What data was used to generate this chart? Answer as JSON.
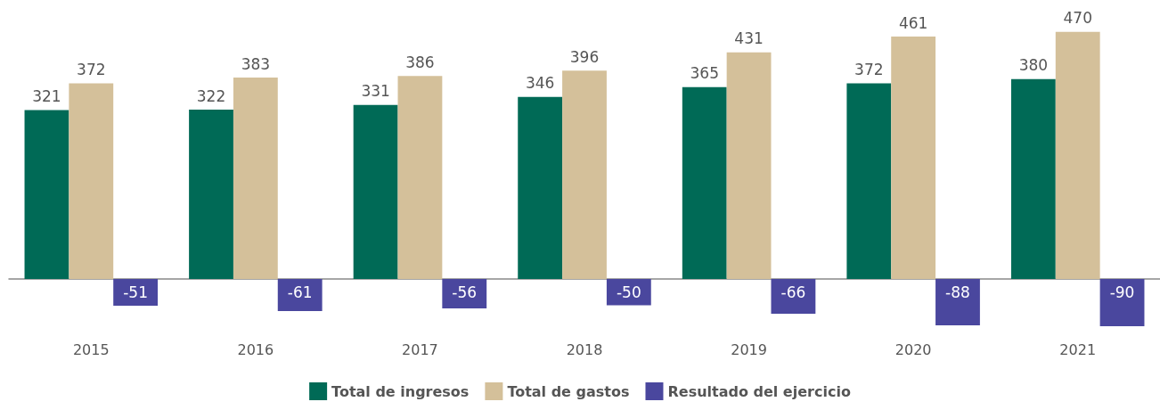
{
  "chart_data": {
    "type": "bar",
    "categories": [
      "2015",
      "2016",
      "2017",
      "2018",
      "2019",
      "2020",
      "2021"
    ],
    "series": [
      {
        "name": "Total de ingresos",
        "color": "#006a56",
        "values": [
          321,
          322,
          331,
          346,
          365,
          372,
          380
        ]
      },
      {
        "name": "Total de gastos",
        "color": "#d4c09a",
        "values": [
          372,
          383,
          386,
          396,
          431,
          461,
          470
        ]
      },
      {
        "name": "Resultado del ejercicio",
        "color": "#4a479e",
        "values": [
          -51,
          -61,
          -56,
          -50,
          -66,
          -88,
          -90
        ]
      }
    ],
    "data_labels": true,
    "grid": false,
    "legend": "bottom",
    "tick_labels": "x"
  }
}
